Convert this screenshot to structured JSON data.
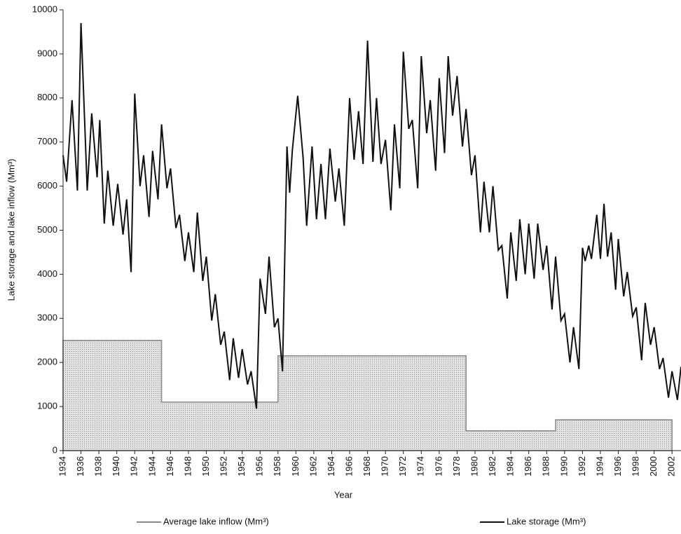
{
  "chart_data": {
    "type": "line",
    "x_label": "Year",
    "y_label": "Lake storage and lake inflow (Mm³)",
    "xlim": [
      1934,
      2003
    ],
    "ylim": [
      0,
      10000
    ],
    "xticks": [
      1934,
      1936,
      1938,
      1940,
      1942,
      1944,
      1946,
      1948,
      1950,
      1952,
      1954,
      1956,
      1958,
      1960,
      1962,
      1964,
      1966,
      1968,
      1970,
      1972,
      1974,
      1976,
      1978,
      1980,
      1982,
      1984,
      1986,
      1988,
      1990,
      1992,
      1994,
      1996,
      1998,
      2000,
      2002
    ],
    "yticks": [
      0,
      1000,
      2000,
      3000,
      4000,
      5000,
      6000,
      7000,
      8000,
      9000,
      10000
    ],
    "series": [
      {
        "name": "Average lake inflow (Mm³)",
        "color": "#888888",
        "style": "step-area",
        "x": [
          1934,
          1945,
          1945,
          1958,
          1958,
          1979,
          1979,
          1989,
          1989,
          2002
        ],
        "values": [
          2500,
          2500,
          1100,
          1100,
          2150,
          2150,
          450,
          450,
          700,
          700
        ]
      },
      {
        "name": "Lake storage (Mm³)",
        "color": "#111111",
        "style": "line",
        "x": [
          1934.0,
          1934.4,
          1935.0,
          1935.6,
          1936.0,
          1936.7,
          1937.2,
          1937.8,
          1938.1,
          1938.6,
          1939.0,
          1939.6,
          1940.1,
          1940.7,
          1941.1,
          1941.6,
          1942.0,
          1942.6,
          1943.0,
          1943.6,
          1944.0,
          1944.6,
          1945.0,
          1945.6,
          1946.0,
          1946.6,
          1947.0,
          1947.6,
          1948.0,
          1948.6,
          1949.0,
          1949.6,
          1950.0,
          1950.6,
          1951.0,
          1951.6,
          1952.0,
          1952.6,
          1953.0,
          1953.6,
          1954.0,
          1954.6,
          1955.0,
          1955.6,
          1956.0,
          1956.6,
          1957.0,
          1957.6,
          1958.0,
          1958.5,
          1959.0,
          1959.3,
          1959.6,
          1960.2,
          1960.8,
          1961.2,
          1961.8,
          1962.3,
          1962.8,
          1963.3,
          1963.8,
          1964.4,
          1964.8,
          1965.4,
          1966.0,
          1966.5,
          1967.0,
          1967.5,
          1968.0,
          1968.6,
          1969.0,
          1969.5,
          1970.0,
          1970.6,
          1971.0,
          1971.6,
          1972.0,
          1972.6,
          1973.0,
          1973.6,
          1974.0,
          1974.6,
          1975.0,
          1975.6,
          1976.0,
          1976.6,
          1977.0,
          1977.5,
          1978.0,
          1978.6,
          1979.0,
          1979.6,
          1980.0,
          1980.6,
          1981.0,
          1981.6,
          1982.0,
          1982.6,
          1983.0,
          1983.6,
          1984.0,
          1984.6,
          1985.0,
          1985.6,
          1986.0,
          1986.6,
          1987.0,
          1987.6,
          1988.0,
          1988.6,
          1989.0,
          1989.6,
          1990.0,
          1990.6,
          1991.0,
          1991.6,
          1992.0,
          1992.3,
          1992.7,
          1993.0,
          1993.6,
          1994.0,
          1994.4,
          1994.8,
          1995.2,
          1995.7,
          1996.0,
          1996.6,
          1997.0,
          1997.6,
          1998.0,
          1998.6,
          1999.0,
          1999.6,
          2000.0,
          2000.6,
          2001.0,
          2001.6,
          2002.0,
          2002.6,
          2003.0
        ],
        "values": [
          6700,
          6100,
          7950,
          5900,
          9700,
          5900,
          7650,
          6200,
          7500,
          5150,
          6350,
          5100,
          6050,
          4900,
          5700,
          4050,
          8100,
          6000,
          6700,
          5300,
          6800,
          5700,
          7400,
          5950,
          6400,
          5050,
          5350,
          4300,
          4950,
          4050,
          5400,
          3850,
          4400,
          2950,
          3550,
          2400,
          2700,
          1600,
          2550,
          1650,
          2300,
          1500,
          1800,
          950,
          3900,
          3100,
          4400,
          2800,
          3000,
          1800,
          6900,
          5850,
          6800,
          8050,
          6650,
          5100,
          6900,
          5250,
          6500,
          5250,
          6850,
          5650,
          6400,
          5100,
          8000,
          6600,
          7700,
          6500,
          9300,
          6550,
          8000,
          6500,
          7050,
          5450,
          7400,
          5950,
          9050,
          7300,
          7500,
          5950,
          8950,
          7200,
          7950,
          6350,
          8450,
          6750,
          8950,
          7600,
          8500,
          6900,
          7750,
          6250,
          6700,
          4950,
          6100,
          4950,
          6000,
          4550,
          4650,
          3450,
          4950,
          3850,
          5250,
          4000,
          5150,
          3900,
          5150,
          4100,
          4650,
          3200,
          4400,
          2950,
          3100,
          2000,
          2800,
          1850,
          4600,
          4300,
          4650,
          4350,
          5350,
          4350,
          5600,
          4400,
          4950,
          3650,
          4800,
          3500,
          4050,
          3050,
          3250,
          2050,
          3350,
          2400,
          2800,
          1850,
          2100,
          1200,
          1800,
          1150,
          1900
        ]
      }
    ]
  }
}
